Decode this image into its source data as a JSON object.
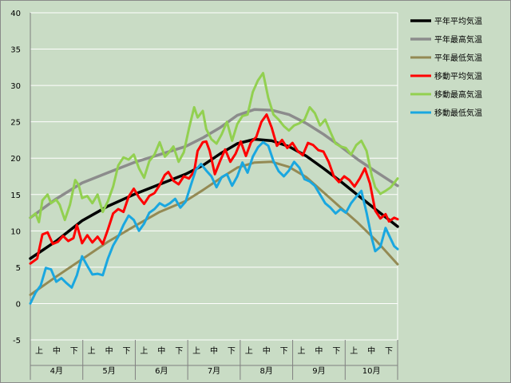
{
  "chart_data": {
    "type": "line",
    "title": "",
    "xlabel": "",
    "ylabel": "",
    "ylim": [
      -5,
      40
    ],
    "yticks": [
      -5,
      0,
      5,
      10,
      15,
      20,
      25,
      30,
      35,
      40
    ],
    "grid": "horizontal",
    "legend_position": "right",
    "x_subcategories": [
      "上",
      "中",
      "下"
    ],
    "x_months": [
      "4月",
      "5月",
      "6月",
      "7月",
      "8月",
      "9月",
      "10月"
    ],
    "x_unit": "day index (0 = 4月1日, 213 = 10月31日)",
    "xlim": [
      0,
      213
    ],
    "colors": {
      "plot_bg": "#c9dcc5",
      "grid": "#ffffff"
    },
    "series": [
      {
        "name": "平年平均気温",
        "color": "#000000",
        "width": 3.5,
        "points": [
          [
            0,
            6.2
          ],
          [
            15,
            8.6
          ],
          [
            30,
            11.4
          ],
          [
            45,
            13.4
          ],
          [
            60,
            15.0
          ],
          [
            75,
            16.4
          ],
          [
            90,
            17.8
          ],
          [
            100,
            19.0
          ],
          [
            110,
            20.6
          ],
          [
            120,
            22.0
          ],
          [
            130,
            22.6
          ],
          [
            140,
            22.4
          ],
          [
            150,
            21.6
          ],
          [
            160,
            20.3
          ],
          [
            170,
            18.6
          ],
          [
            180,
            16.8
          ],
          [
            190,
            14.9
          ],
          [
            200,
            13.0
          ],
          [
            213,
            10.6
          ]
        ]
      },
      {
        "name": "平年最高気温",
        "color": "#8c8c8c",
        "width": 3.5,
        "points": [
          [
            0,
            11.8
          ],
          [
            15,
            14.4
          ],
          [
            30,
            16.6
          ],
          [
            45,
            18.0
          ],
          [
            60,
            19.4
          ],
          [
            75,
            20.5
          ],
          [
            90,
            21.6
          ],
          [
            100,
            22.8
          ],
          [
            110,
            24.2
          ],
          [
            120,
            25.9
          ],
          [
            130,
            26.7
          ],
          [
            140,
            26.6
          ],
          [
            150,
            26.0
          ],
          [
            160,
            24.8
          ],
          [
            170,
            23.3
          ],
          [
            180,
            21.6
          ],
          [
            190,
            19.8
          ],
          [
            200,
            18.2
          ],
          [
            213,
            16.2
          ]
        ]
      },
      {
        "name": "平年最低気温",
        "color": "#948a54",
        "width": 3,
        "points": [
          [
            0,
            1.2
          ],
          [
            15,
            3.7
          ],
          [
            30,
            6.1
          ],
          [
            45,
            8.5
          ],
          [
            60,
            10.6
          ],
          [
            75,
            12.6
          ],
          [
            90,
            14.1
          ],
          [
            100,
            15.6
          ],
          [
            110,
            17.2
          ],
          [
            120,
            18.7
          ],
          [
            130,
            19.4
          ],
          [
            140,
            19.5
          ],
          [
            150,
            18.8
          ],
          [
            160,
            17.4
          ],
          [
            170,
            15.3
          ],
          [
            180,
            13.2
          ],
          [
            190,
            11.1
          ],
          [
            200,
            8.8
          ],
          [
            213,
            5.4
          ]
        ]
      },
      {
        "name": "移動平均気温",
        "color": "#ff0000",
        "width": 3,
        "points": [
          [
            0,
            5.5
          ],
          [
            4,
            6.2
          ],
          [
            7,
            9.5
          ],
          [
            10,
            9.8
          ],
          [
            13,
            8.2
          ],
          [
            16,
            8.5
          ],
          [
            19,
            9.3
          ],
          [
            22,
            8.6
          ],
          [
            25,
            9.0
          ],
          [
            27,
            10.8
          ],
          [
            30,
            8.3
          ],
          [
            33,
            9.4
          ],
          [
            36,
            8.4
          ],
          [
            39,
            9.2
          ],
          [
            42,
            8.2
          ],
          [
            45,
            10.2
          ],
          [
            48,
            12.4
          ],
          [
            51,
            13.0
          ],
          [
            54,
            12.6
          ],
          [
            57,
            14.7
          ],
          [
            60,
            15.8
          ],
          [
            63,
            14.6
          ],
          [
            66,
            13.7
          ],
          [
            69,
            14.8
          ],
          [
            72,
            15.2
          ],
          [
            75,
            16.3
          ],
          [
            78,
            17.7
          ],
          [
            80,
            18.1
          ],
          [
            83,
            16.9
          ],
          [
            86,
            16.4
          ],
          [
            89,
            17.5
          ],
          [
            92,
            17.2
          ],
          [
            95,
            18.2
          ],
          [
            97,
            21.0
          ],
          [
            100,
            22.2
          ],
          [
            102,
            22.3
          ],
          [
            104,
            21.0
          ],
          [
            107,
            17.8
          ],
          [
            110,
            19.6
          ],
          [
            113,
            21.2
          ],
          [
            116,
            19.5
          ],
          [
            119,
            20.6
          ],
          [
            122,
            22.3
          ],
          [
            125,
            20.3
          ],
          [
            128,
            22.2
          ],
          [
            131,
            22.9
          ],
          [
            134,
            25.0
          ],
          [
            137,
            26.0
          ],
          [
            140,
            24.2
          ],
          [
            143,
            21.7
          ],
          [
            146,
            22.5
          ],
          [
            149,
            21.4
          ],
          [
            152,
            22.1
          ],
          [
            155,
            21.0
          ],
          [
            158,
            20.4
          ],
          [
            161,
            22.1
          ],
          [
            164,
            21.8
          ],
          [
            167,
            21.1
          ],
          [
            170,
            20.9
          ],
          [
            173,
            19.5
          ],
          [
            176,
            17.5
          ],
          [
            179,
            16.7
          ],
          [
            182,
            17.5
          ],
          [
            185,
            17.0
          ],
          [
            188,
            16.1
          ],
          [
            191,
            17.2
          ],
          [
            194,
            18.6
          ],
          [
            197,
            16.5
          ],
          [
            200,
            12.8
          ],
          [
            203,
            11.7
          ],
          [
            206,
            12.3
          ],
          [
            208,
            11.3
          ],
          [
            211,
            11.8
          ],
          [
            213,
            11.6
          ]
        ]
      },
      {
        "name": "移動最高気温",
        "color": "#92d050",
        "width": 3,
        "points": [
          [
            0,
            11.8
          ],
          [
            3,
            12.4
          ],
          [
            5,
            11.2
          ],
          [
            7,
            14.2
          ],
          [
            10,
            15.0
          ],
          [
            12,
            13.8
          ],
          [
            15,
            14.3
          ],
          [
            17,
            13.6
          ],
          [
            20,
            11.5
          ],
          [
            23,
            13.6
          ],
          [
            26,
            17.0
          ],
          [
            28,
            16.3
          ],
          [
            30,
            14.5
          ],
          [
            33,
            14.8
          ],
          [
            36,
            13.8
          ],
          [
            39,
            15.0
          ],
          [
            42,
            12.6
          ],
          [
            45,
            14.1
          ],
          [
            48,
            16.1
          ],
          [
            51,
            19.0
          ],
          [
            54,
            20.1
          ],
          [
            57,
            19.8
          ],
          [
            60,
            20.5
          ],
          [
            63,
            18.6
          ],
          [
            66,
            17.3
          ],
          [
            69,
            19.6
          ],
          [
            72,
            20.5
          ],
          [
            75,
            22.2
          ],
          [
            78,
            20.2
          ],
          [
            80,
            20.7
          ],
          [
            83,
            21.6
          ],
          [
            86,
            19.5
          ],
          [
            89,
            20.8
          ],
          [
            92,
            24.1
          ],
          [
            95,
            27.0
          ],
          [
            97,
            25.6
          ],
          [
            100,
            26.5
          ],
          [
            102,
            24.0
          ],
          [
            105,
            22.6
          ],
          [
            108,
            22.0
          ],
          [
            111,
            23.3
          ],
          [
            114,
            25.0
          ],
          [
            117,
            22.4
          ],
          [
            120,
            24.7
          ],
          [
            123,
            25.8
          ],
          [
            126,
            26.0
          ],
          [
            129,
            29.1
          ],
          [
            132,
            30.7
          ],
          [
            135,
            31.7
          ],
          [
            138,
            28.3
          ],
          [
            141,
            26.0
          ],
          [
            144,
            25.3
          ],
          [
            147,
            24.4
          ],
          [
            150,
            23.8
          ],
          [
            153,
            24.5
          ],
          [
            156,
            24.8
          ],
          [
            159,
            25.3
          ],
          [
            162,
            27.0
          ],
          [
            165,
            26.2
          ],
          [
            168,
            24.5
          ],
          [
            171,
            25.3
          ],
          [
            174,
            23.6
          ],
          [
            177,
            22.0
          ],
          [
            180,
            21.6
          ],
          [
            183,
            21.4
          ],
          [
            186,
            20.5
          ],
          [
            189,
            21.8
          ],
          [
            192,
            22.4
          ],
          [
            195,
            21.0
          ],
          [
            198,
            17.6
          ],
          [
            200,
            16.0
          ],
          [
            203,
            15.1
          ],
          [
            206,
            15.5
          ],
          [
            209,
            16.0
          ],
          [
            213,
            17.2
          ]
        ]
      },
      {
        "name": "移動最低気温",
        "color": "#1aa7e0",
        "width": 3,
        "points": [
          [
            0,
            0.0
          ],
          [
            3,
            1.5
          ],
          [
            6,
            2.5
          ],
          [
            9,
            4.9
          ],
          [
            12,
            4.7
          ],
          [
            15,
            3.0
          ],
          [
            18,
            3.5
          ],
          [
            21,
            2.8
          ],
          [
            24,
            2.2
          ],
          [
            27,
            3.9
          ],
          [
            30,
            6.5
          ],
          [
            33,
            5.2
          ],
          [
            36,
            4.0
          ],
          [
            39,
            4.1
          ],
          [
            42,
            3.9
          ],
          [
            45,
            6.2
          ],
          [
            48,
            8.0
          ],
          [
            51,
            9.2
          ],
          [
            54,
            10.8
          ],
          [
            57,
            12.1
          ],
          [
            60,
            11.5
          ],
          [
            63,
            10.0
          ],
          [
            66,
            11.0
          ],
          [
            69,
            12.5
          ],
          [
            72,
            13.0
          ],
          [
            75,
            13.8
          ],
          [
            78,
            13.4
          ],
          [
            81,
            13.8
          ],
          [
            84,
            14.4
          ],
          [
            87,
            13.2
          ],
          [
            90,
            14.0
          ],
          [
            93,
            16.2
          ],
          [
            96,
            18.4
          ],
          [
            99,
            19.2
          ],
          [
            102,
            18.3
          ],
          [
            105,
            17.5
          ],
          [
            108,
            16.0
          ],
          [
            111,
            17.4
          ],
          [
            114,
            17.8
          ],
          [
            117,
            16.2
          ],
          [
            120,
            17.5
          ],
          [
            123,
            19.4
          ],
          [
            126,
            18.0
          ],
          [
            129,
            20.2
          ],
          [
            132,
            21.5
          ],
          [
            135,
            22.2
          ],
          [
            138,
            21.7
          ],
          [
            141,
            19.6
          ],
          [
            144,
            18.2
          ],
          [
            147,
            17.5
          ],
          [
            150,
            18.3
          ],
          [
            153,
            19.5
          ],
          [
            156,
            18.7
          ],
          [
            159,
            17.1
          ],
          [
            162,
            16.8
          ],
          [
            165,
            16.2
          ],
          [
            168,
            15.0
          ],
          [
            171,
            13.8
          ],
          [
            174,
            13.2
          ],
          [
            177,
            12.4
          ],
          [
            180,
            13.0
          ],
          [
            183,
            12.5
          ],
          [
            186,
            13.8
          ],
          [
            189,
            14.7
          ],
          [
            192,
            15.5
          ],
          [
            195,
            12.5
          ],
          [
            198,
            9.0
          ],
          [
            200,
            7.2
          ],
          [
            203,
            7.8
          ],
          [
            206,
            10.4
          ],
          [
            208,
            9.4
          ],
          [
            211,
            7.9
          ],
          [
            213,
            7.5
          ]
        ]
      }
    ]
  }
}
